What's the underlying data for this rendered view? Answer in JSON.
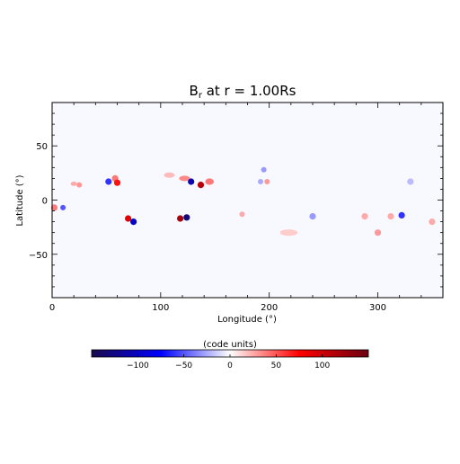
{
  "chart_data": {
    "type": "heatmap",
    "title_main": "B",
    "title_sub": "r",
    "title_rest": " at r = 1.00Rs",
    "xlabel": "Longitude (°)",
    "ylabel": "Latitude (°)",
    "xlim": [
      0,
      360
    ],
    "ylim": [
      -90,
      90
    ],
    "x_ticks": [
      0,
      100,
      200,
      300
    ],
    "x_tick_labels": [
      "0",
      "100",
      "200",
      "300"
    ],
    "y_ticks": [
      -50,
      0,
      50
    ],
    "y_tick_labels": [
      "−50",
      "0",
      "50"
    ],
    "colorbar": {
      "label": "(code units)",
      "range": [
        -150,
        150
      ],
      "ticks": [
        -100,
        -50,
        0,
        50,
        100
      ],
      "tick_labels": [
        "−100",
        "−50",
        "0",
        "50",
        "100"
      ],
      "colors": [
        "#1a0a4a",
        "#0000ff",
        "#ffffff",
        "#ff0000",
        "#6a0010"
      ]
    },
    "features": [
      {
        "lon": 2,
        "lat": -7,
        "value": 40,
        "s_lon": 3,
        "s_lat": 3
      },
      {
        "lon": 10,
        "lat": -7,
        "value": -50,
        "s_lon": 2.5,
        "s_lat": 2.5
      },
      {
        "lon": 20,
        "lat": 15,
        "value": 25,
        "s_lon": 3,
        "s_lat": 2
      },
      {
        "lon": 25,
        "lat": 14,
        "value": 30,
        "s_lon": 2.5,
        "s_lat": 2.5
      },
      {
        "lon": 52,
        "lat": 17,
        "value": -60,
        "s_lon": 3,
        "s_lat": 3
      },
      {
        "lon": 58,
        "lat": 20,
        "value": 40,
        "s_lon": 3,
        "s_lat": 3
      },
      {
        "lon": 60,
        "lat": 16,
        "value": 70,
        "s_lon": 3,
        "s_lat": 3
      },
      {
        "lon": 70,
        "lat": -17,
        "value": 90,
        "s_lon": 3,
        "s_lat": 3
      },
      {
        "lon": 75,
        "lat": -20,
        "value": -100,
        "s_lon": 3,
        "s_lat": 3
      },
      {
        "lon": 108,
        "lat": 23,
        "value": 20,
        "s_lon": 5,
        "s_lat": 2.5
      },
      {
        "lon": 118,
        "lat": -17,
        "value": 120,
        "s_lon": 3,
        "s_lat": 3
      },
      {
        "lon": 124,
        "lat": -16,
        "value": -130,
        "s_lon": 3,
        "s_lat": 3
      },
      {
        "lon": 122,
        "lat": 20,
        "value": 35,
        "s_lon": 5,
        "s_lat": 2.5
      },
      {
        "lon": 128,
        "lat": 17,
        "value": -110,
        "s_lon": 3,
        "s_lat": 3
      },
      {
        "lon": 137,
        "lat": 14,
        "value": 110,
        "s_lon": 3,
        "s_lat": 3
      },
      {
        "lon": 145,
        "lat": 17,
        "value": 40,
        "s_lon": 4,
        "s_lat": 3
      },
      {
        "lon": 195,
        "lat": 28,
        "value": -30,
        "s_lon": 2.5,
        "s_lat": 2.5
      },
      {
        "lon": 192,
        "lat": 17,
        "value": -25,
        "s_lon": 2.5,
        "s_lat": 2.5
      },
      {
        "lon": 198,
        "lat": 17,
        "value": 30,
        "s_lon": 2.5,
        "s_lat": 2.5
      },
      {
        "lon": 175,
        "lat": -13,
        "value": 25,
        "s_lon": 2.5,
        "s_lat": 2.5
      },
      {
        "lon": 218,
        "lat": -30,
        "value": 15,
        "s_lon": 8,
        "s_lat": 3
      },
      {
        "lon": 240,
        "lat": -15,
        "value": -30,
        "s_lon": 3,
        "s_lat": 3
      },
      {
        "lon": 288,
        "lat": -15,
        "value": 25,
        "s_lon": 3,
        "s_lat": 3
      },
      {
        "lon": 300,
        "lat": -30,
        "value": 30,
        "s_lon": 3,
        "s_lat": 3
      },
      {
        "lon": 312,
        "lat": -15,
        "value": 25,
        "s_lon": 3,
        "s_lat": 3
      },
      {
        "lon": 322,
        "lat": -14,
        "value": -60,
        "s_lon": 3,
        "s_lat": 3
      },
      {
        "lon": 330,
        "lat": 17,
        "value": -20,
        "s_lon": 3,
        "s_lat": 3
      },
      {
        "lon": 350,
        "lat": -20,
        "value": 25,
        "s_lon": 3,
        "s_lat": 3
      }
    ]
  }
}
